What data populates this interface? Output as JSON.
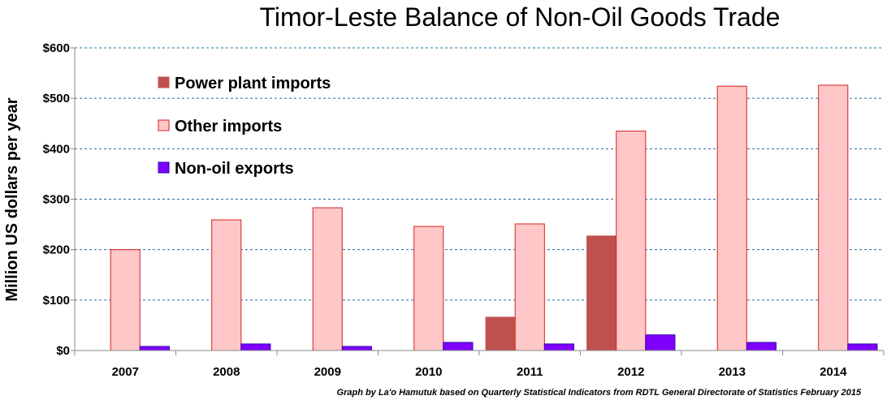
{
  "chart_data": {
    "type": "bar",
    "title": "Timor-Leste Balance of Non-Oil Goods Trade",
    "ylabel": "Million US dollars per year",
    "xlabel": "",
    "ylim": [
      0,
      600
    ],
    "y_ticks": [
      0,
      100,
      200,
      300,
      400,
      500,
      600
    ],
    "y_tick_labels": [
      "$0",
      "$100",
      "$200",
      "$300",
      "$400",
      "$500",
      "$600"
    ],
    "grid": true,
    "legend_position": "top-left",
    "categories": [
      "2007",
      "2008",
      "2009",
      "2010",
      "2011",
      "2012",
      "2013",
      "2014"
    ],
    "series": [
      {
        "name": "Power plant imports",
        "color": "#c0504d",
        "stroke": "#c0504d",
        "values": [
          0,
          0,
          0,
          0,
          66,
          227,
          0,
          0
        ]
      },
      {
        "name": "Other imports",
        "color": "#ffc7c7",
        "stroke": "#d92020",
        "values": [
          200,
          259,
          283,
          246,
          251,
          435,
          524,
          526
        ]
      },
      {
        "name": "Non-oil exports",
        "color": "#7f00ff",
        "stroke": "#3300aa",
        "values": [
          8,
          13,
          8,
          16,
          13,
          31,
          16,
          13
        ]
      }
    ],
    "source": "Graph by La'o Hamutuk based on Quarterly Statistical Indicators from RDTL General Directorate of Statistics   February 2015"
  }
}
